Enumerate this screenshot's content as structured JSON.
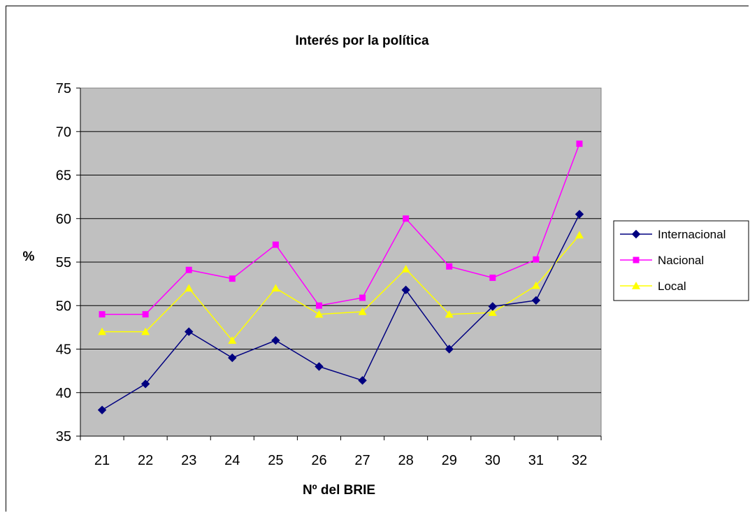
{
  "chart_data": {
    "type": "line",
    "title": "Interés por la política",
    "xlabel": "Nº del BRIE",
    "ylabel": "%",
    "categories": [
      "21",
      "22",
      "23",
      "24",
      "25",
      "26",
      "27",
      "28",
      "29",
      "30",
      "31",
      "32"
    ],
    "ylim": [
      35,
      75
    ],
    "yticks": [
      35,
      40,
      45,
      50,
      55,
      60,
      65,
      70,
      75
    ],
    "grid": true,
    "legend_position": "right",
    "plot_background": "#c0c0c0",
    "series": [
      {
        "name": "Internacional",
        "color": "#000080",
        "marker": "diamond",
        "values": [
          38,
          41,
          47,
          44,
          46,
          43,
          41.4,
          51.8,
          45,
          49.9,
          50.6,
          60.5
        ]
      },
      {
        "name": "Nacional",
        "color": "#ff00ff",
        "marker": "square",
        "values": [
          49,
          49,
          54.1,
          53.1,
          57,
          50,
          50.9,
          60,
          54.5,
          53.2,
          55.3,
          68.6
        ]
      },
      {
        "name": "Local",
        "color": "#ffff00",
        "marker": "triangle",
        "values": [
          47,
          47,
          52,
          46,
          52,
          49,
          49.3,
          54.2,
          49,
          49.2,
          52.3,
          58.1
        ]
      }
    ]
  }
}
